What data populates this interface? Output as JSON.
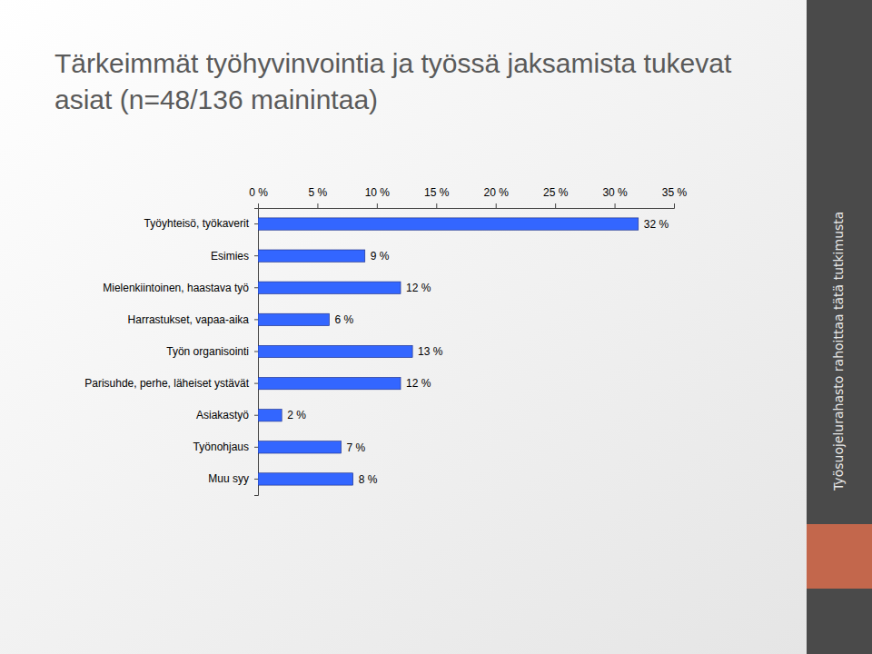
{
  "chart_data": {
    "type": "bar",
    "orientation": "horizontal",
    "title": "Tärkeimmät työhyvinvointia ja työssä jaksamista tukevat asiat (n=48/136 mainintaa)",
    "categories": [
      "Työyhteisö, työkaverit",
      "Esimies",
      "Mielenkiintoinen, haastava työ",
      "Harrastukset, vapaa-aika",
      "Työn organisointi",
      "Parisuhde, perhe, läheiset ystävät",
      "Asiakastyö",
      "Työnohjaus",
      "Muu syy"
    ],
    "values": [
      32,
      9,
      12,
      6,
      13,
      12,
      2,
      7,
      8
    ],
    "value_labels": [
      "32 %",
      "9 %",
      "12 %",
      "6 %",
      "13 %",
      "12 %",
      "2 %",
      "7 %",
      "8 %"
    ],
    "data_labels": true,
    "color": "#3366ff",
    "xlim": [
      0,
      35
    ],
    "xticks": [
      {
        "value": 0,
        "label": "0 %"
      },
      {
        "value": 5,
        "label": "5 %"
      },
      {
        "value": 10,
        "label": "10 %"
      },
      {
        "value": 15,
        "label": "15 %"
      },
      {
        "value": 20,
        "label": "20 %"
      },
      {
        "value": 25,
        "label": "25 %"
      },
      {
        "value": 30,
        "label": "30 %"
      },
      {
        "value": 35,
        "label": "35 %"
      }
    ],
    "grid": false,
    "annotations": [
      "Työsuojelurahasto rahoittaa tätä tutkimusta"
    ]
  }
}
